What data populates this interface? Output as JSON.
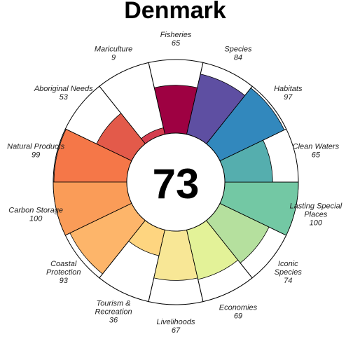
{
  "chart_data": {
    "type": "flower",
    "title": "Denmark",
    "overall_score": "73",
    "max_value": 100,
    "petals": [
      {
        "name": "Fisheries",
        "value": 65,
        "color": "#9e0142",
        "label_lines": [
          "Fisheries"
        ]
      },
      {
        "name": "Mariculture",
        "value": 9,
        "color": "#d53e4f",
        "label_lines": [
          "Mariculture"
        ]
      },
      {
        "name": "Aboriginal Needs",
        "value": 53,
        "color": "#e35a4a",
        "label_lines": [
          "Aboriginal Needs"
        ]
      },
      {
        "name": "Natural Products",
        "value": 99,
        "color": "#f57748",
        "label_lines": [
          "Natural Products"
        ]
      },
      {
        "name": "Carbon Storage",
        "value": 100,
        "color": "#fa9c58",
        "label_lines": [
          "Carbon Storage"
        ]
      },
      {
        "name": "Coastal Protection",
        "value": 93,
        "color": "#fdb56a",
        "label_lines": [
          "Coastal",
          "Protection"
        ]
      },
      {
        "name": "Tourism & Recreation",
        "value": 36,
        "color": "#fed580",
        "label_lines": [
          "Tourism &",
          "Recreation"
        ]
      },
      {
        "name": "Livelihoods",
        "value": 67,
        "color": "#f8e796",
        "label_lines": [
          "Livelihoods"
        ]
      },
      {
        "name": "Economies",
        "value": 69,
        "color": "#e3f298",
        "label_lines": [
          "Economies"
        ]
      },
      {
        "name": "Iconic Species",
        "value": 74,
        "color": "#b5e09e",
        "label_lines": [
          "Iconic",
          "Species"
        ]
      },
      {
        "name": "Lasting Special Places",
        "value": 100,
        "color": "#73c8a4",
        "label_lines": [
          "Lasting Special",
          "Places"
        ]
      },
      {
        "name": "Clean Waters",
        "value": 65,
        "color": "#55aeae",
        "label_lines": [
          "Clean Waters"
        ]
      },
      {
        "name": "Habitats",
        "value": 97,
        "color": "#3288bd",
        "label_lines": [
          "Habitats"
        ]
      },
      {
        "name": "Species",
        "value": 84,
        "color": "#5e4fa2",
        "label_lines": [
          "Species"
        ]
      }
    ]
  }
}
